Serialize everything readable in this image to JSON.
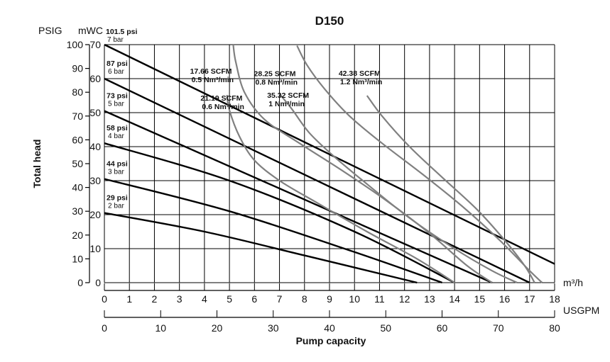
{
  "chart_data": {
    "type": "line",
    "title": "D150",
    "y_units": {
      "psi": "PSIG",
      "mwc": "mWC"
    },
    "ylabel": "Total head",
    "xlabel": "Pump capacity",
    "x_units": {
      "m3h": "m³/h",
      "usgpm": "USGPM"
    },
    "grid": true,
    "axes": {
      "mwc": {
        "range": [
          0,
          70
        ],
        "ticks": [
          "0",
          "10",
          "20",
          "30",
          "40",
          "50",
          "60",
          "70"
        ]
      },
      "psi": {
        "range": [
          0,
          100
        ],
        "ticks": [
          "0",
          "10",
          "20",
          "30",
          "40",
          "50",
          "60",
          "70",
          "80",
          "90",
          "100"
        ]
      },
      "m3h": {
        "range": [
          0,
          18
        ],
        "ticks": [
          "0",
          "1",
          "2",
          "3",
          "4",
          "5",
          "6",
          "7",
          "8",
          "9",
          "10",
          "11",
          "12",
          "13",
          "14",
          "15",
          "16",
          "17",
          "18"
        ]
      },
      "usgpm": {
        "range": [
          0,
          80
        ],
        "ticks": [
          "0",
          "10",
          "20",
          "30",
          "40",
          "50",
          "60",
          "70",
          "80"
        ]
      }
    },
    "pressure_curves": [
      {
        "psi_label": "101.5 psi",
        "bar_label": "7 bar",
        "points": [
          [
            0,
            70
          ],
          [
            18,
            5.5
          ]
        ]
      },
      {
        "psi_label": "87 psi",
        "bar_label": "6 bar",
        "points": [
          [
            0,
            60
          ],
          [
            17,
            0
          ]
        ]
      },
      {
        "psi_label": "73 psi",
        "bar_label": "5 bar",
        "points": [
          [
            0,
            50.5
          ],
          [
            15.5,
            0
          ]
        ]
      },
      {
        "psi_label": "58 psi",
        "bar_label": "4 bar",
        "points": [
          [
            0,
            41
          ],
          [
            5,
            30
          ],
          [
            10,
            15
          ],
          [
            14,
            0
          ]
        ]
      },
      {
        "psi_label": "44 psi",
        "bar_label": "3 bar",
        "points": [
          [
            0,
            30.5
          ],
          [
            5,
            21
          ],
          [
            10,
            9
          ],
          [
            13.5,
            0
          ]
        ]
      },
      {
        "psi_label": "29 psi",
        "bar_label": "2 bar",
        "points": [
          [
            0,
            20.5
          ],
          [
            4,
            15
          ],
          [
            8,
            8
          ],
          [
            12.5,
            0
          ]
        ]
      }
    ],
    "flow_curves": [
      {
        "scfm_label": "17.66 SCFM",
        "nm_label": "0.5 Nm³/min",
        "points": [
          [
            4.9,
            55.2
          ],
          [
            5.0,
            50.7
          ],
          [
            5.4,
            43
          ],
          [
            6.0,
            36
          ],
          [
            7.0,
            30
          ],
          [
            8.5,
            23.5
          ],
          [
            10.5,
            15
          ],
          [
            12.5,
            7
          ],
          [
            14,
            0
          ]
        ]
      },
      {
        "scfm_label": "21.19 SCFM",
        "nm_label": "0.6 Nm³/min",
        "points": [
          [
            5.15,
            70
          ],
          [
            5.25,
            65
          ],
          [
            5.6,
            56
          ],
          [
            6.4,
            48
          ],
          [
            7.8,
            41
          ],
          [
            9.5,
            33
          ],
          [
            11.3,
            24
          ],
          [
            13.0,
            14.5
          ],
          [
            14.5,
            5
          ],
          [
            15.5,
            0
          ]
        ]
      },
      {
        "scfm_label": "28.25 SCFM",
        "nm_label": "0.8 Nm³/min",
        "points": [
          [
            7.0,
            55.5
          ],
          [
            7.5,
            51
          ],
          [
            8.2,
            44
          ],
          [
            9.2,
            37
          ],
          [
            10.5,
            29
          ],
          [
            12.2,
            19
          ],
          [
            14.0,
            10
          ],
          [
            15.5,
            3.5
          ],
          [
            16.5,
            0
          ]
        ]
      },
      {
        "scfm_label": "35.32 SCFM",
        "nm_label": "1 Nm³/min",
        "points": [
          [
            7.7,
            69.7
          ],
          [
            8.1,
            64
          ],
          [
            8.8,
            57
          ],
          [
            9.8,
            49
          ],
          [
            11.1,
            41
          ],
          [
            12.7,
            32
          ],
          [
            14.3,
            22.5
          ],
          [
            15.8,
            12.5
          ],
          [
            17.0,
            3.5
          ],
          [
            17.5,
            0
          ]
        ]
      },
      {
        "scfm_label": "42.38 SCFM",
        "nm_label": "1.2 Nm³/min",
        "points": [
          [
            10.5,
            55
          ],
          [
            11.1,
            49
          ],
          [
            12.2,
            40
          ],
          [
            13.5,
            31
          ],
          [
            14.9,
            21.5
          ],
          [
            16.0,
            12.5
          ],
          [
            16.8,
            5
          ],
          [
            17.2,
            0
          ]
        ]
      }
    ]
  }
}
